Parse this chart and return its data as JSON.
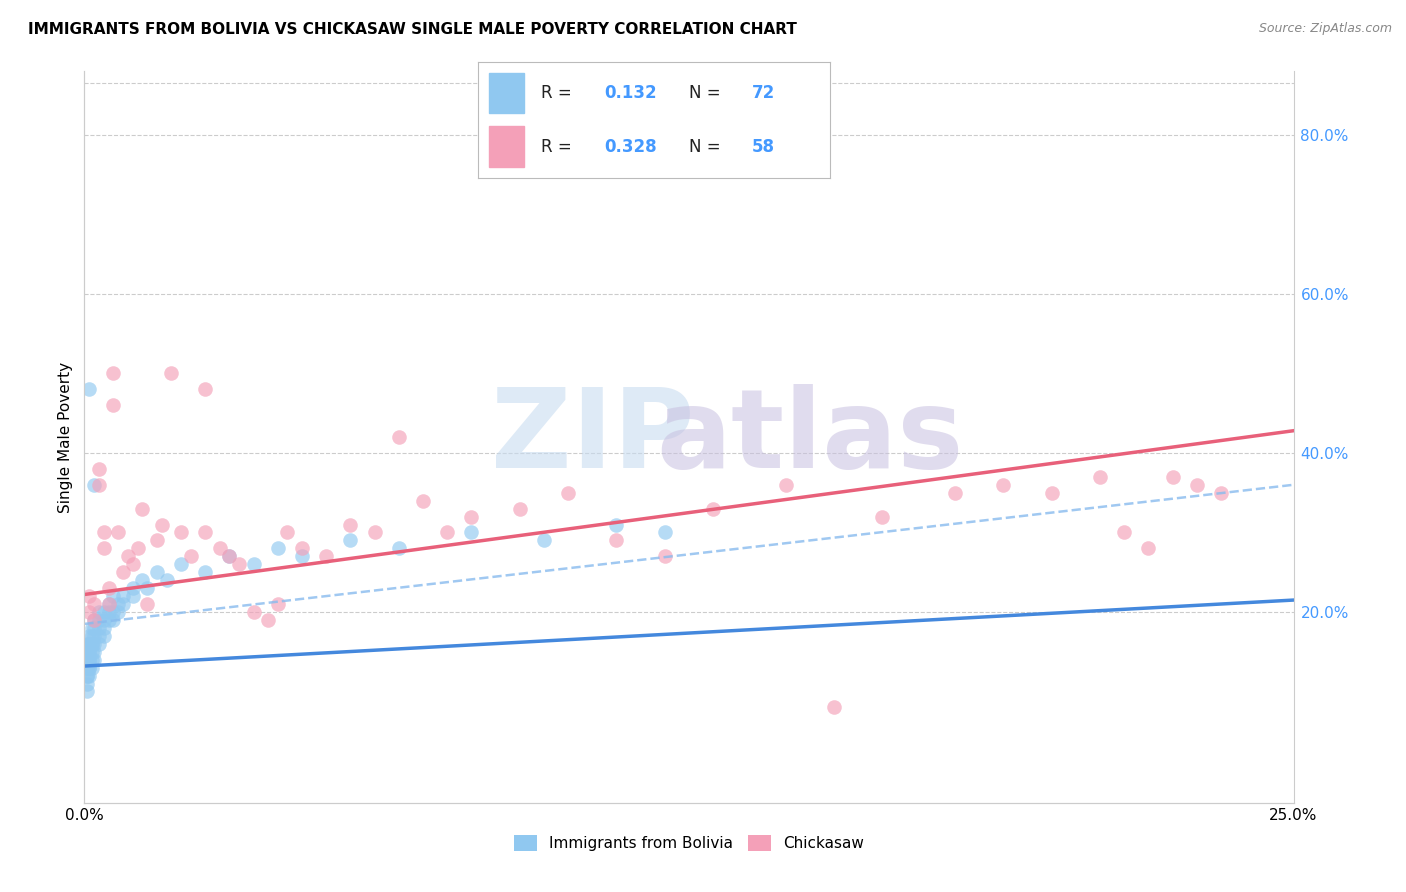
{
  "title": "IMMIGRANTS FROM BOLIVIA VS CHICKASAW SINGLE MALE POVERTY CORRELATION CHART",
  "source": "Source: ZipAtlas.com",
  "ylabel": "Single Male Poverty",
  "ytick_labels": [
    "20.0%",
    "40.0%",
    "60.0%",
    "80.0%"
  ],
  "ytick_values": [
    0.2,
    0.4,
    0.6,
    0.8
  ],
  "xmin": 0.0,
  "xmax": 0.25,
  "ymin": -0.04,
  "ymax": 0.88,
  "color_blue": "#90C8F0",
  "color_pink": "#F4A0B8",
  "color_blue_line": "#4488DD",
  "color_pink_line": "#E8607A",
  "color_blue_dash": "#88BBEE",
  "color_label": "#4499FF",
  "title_fontsize": 11,
  "bolivia_x": [
    0.0005,
    0.0005,
    0.0005,
    0.0005,
    0.0005,
    0.0005,
    0.0005,
    0.0005,
    0.0005,
    0.0005,
    0.001,
    0.001,
    0.001,
    0.001,
    0.001,
    0.001,
    0.001,
    0.001,
    0.001,
    0.001,
    0.0015,
    0.0015,
    0.0015,
    0.0015,
    0.0015,
    0.0015,
    0.0015,
    0.002,
    0.002,
    0.002,
    0.002,
    0.002,
    0.002,
    0.003,
    0.003,
    0.003,
    0.003,
    0.003,
    0.004,
    0.004,
    0.004,
    0.004,
    0.005,
    0.005,
    0.005,
    0.006,
    0.006,
    0.006,
    0.007,
    0.007,
    0.008,
    0.008,
    0.01,
    0.01,
    0.012,
    0.013,
    0.015,
    0.017,
    0.02,
    0.025,
    0.03,
    0.035,
    0.04,
    0.045,
    0.055,
    0.065,
    0.08,
    0.095,
    0.11,
    0.12,
    0.001,
    0.002
  ],
  "bolivia_y": [
    0.14,
    0.13,
    0.12,
    0.15,
    0.11,
    0.16,
    0.1,
    0.13,
    0.12,
    0.14,
    0.15,
    0.14,
    0.16,
    0.13,
    0.17,
    0.12,
    0.15,
    0.13,
    0.16,
    0.14,
    0.16,
    0.15,
    0.17,
    0.14,
    0.18,
    0.13,
    0.16,
    0.17,
    0.16,
    0.18,
    0.15,
    0.19,
    0.14,
    0.18,
    0.17,
    0.19,
    0.16,
    0.2,
    0.19,
    0.18,
    0.2,
    0.17,
    0.2,
    0.19,
    0.21,
    0.2,
    0.19,
    0.22,
    0.21,
    0.2,
    0.22,
    0.21,
    0.23,
    0.22,
    0.24,
    0.23,
    0.25,
    0.24,
    0.26,
    0.25,
    0.27,
    0.26,
    0.28,
    0.27,
    0.29,
    0.28,
    0.3,
    0.29,
    0.31,
    0.3,
    0.48,
    0.36
  ],
  "chickasaw_x": [
    0.001,
    0.001,
    0.002,
    0.002,
    0.003,
    0.003,
    0.004,
    0.004,
    0.005,
    0.005,
    0.006,
    0.006,
    0.007,
    0.008,
    0.009,
    0.01,
    0.011,
    0.012,
    0.013,
    0.015,
    0.016,
    0.018,
    0.02,
    0.022,
    0.025,
    0.025,
    0.028,
    0.03,
    0.032,
    0.035,
    0.038,
    0.04,
    0.042,
    0.045,
    0.05,
    0.055,
    0.06,
    0.065,
    0.07,
    0.075,
    0.08,
    0.09,
    0.1,
    0.11,
    0.12,
    0.13,
    0.145,
    0.155,
    0.165,
    0.18,
    0.19,
    0.2,
    0.21,
    0.215,
    0.22,
    0.225,
    0.23,
    0.235
  ],
  "chickasaw_y": [
    0.2,
    0.22,
    0.19,
    0.21,
    0.36,
    0.38,
    0.3,
    0.28,
    0.23,
    0.21,
    0.5,
    0.46,
    0.3,
    0.25,
    0.27,
    0.26,
    0.28,
    0.33,
    0.21,
    0.29,
    0.31,
    0.5,
    0.3,
    0.27,
    0.3,
    0.48,
    0.28,
    0.27,
    0.26,
    0.2,
    0.19,
    0.21,
    0.3,
    0.28,
    0.27,
    0.31,
    0.3,
    0.42,
    0.34,
    0.3,
    0.32,
    0.33,
    0.35,
    0.29,
    0.27,
    0.33,
    0.36,
    0.08,
    0.32,
    0.35,
    0.36,
    0.35,
    0.37,
    0.3,
    0.28,
    0.37,
    0.36,
    0.35
  ],
  "blue_line_x0": 0.0,
  "blue_line_x1": 0.25,
  "blue_line_y0": 0.132,
  "blue_line_y1": 0.215,
  "pink_line_x0": 0.0,
  "pink_line_x1": 0.25,
  "pink_line_y0": 0.222,
  "pink_line_y1": 0.428,
  "dash_line_x0": 0.0,
  "dash_line_x1": 0.25,
  "dash_line_y0": 0.185,
  "dash_line_y1": 0.36
}
